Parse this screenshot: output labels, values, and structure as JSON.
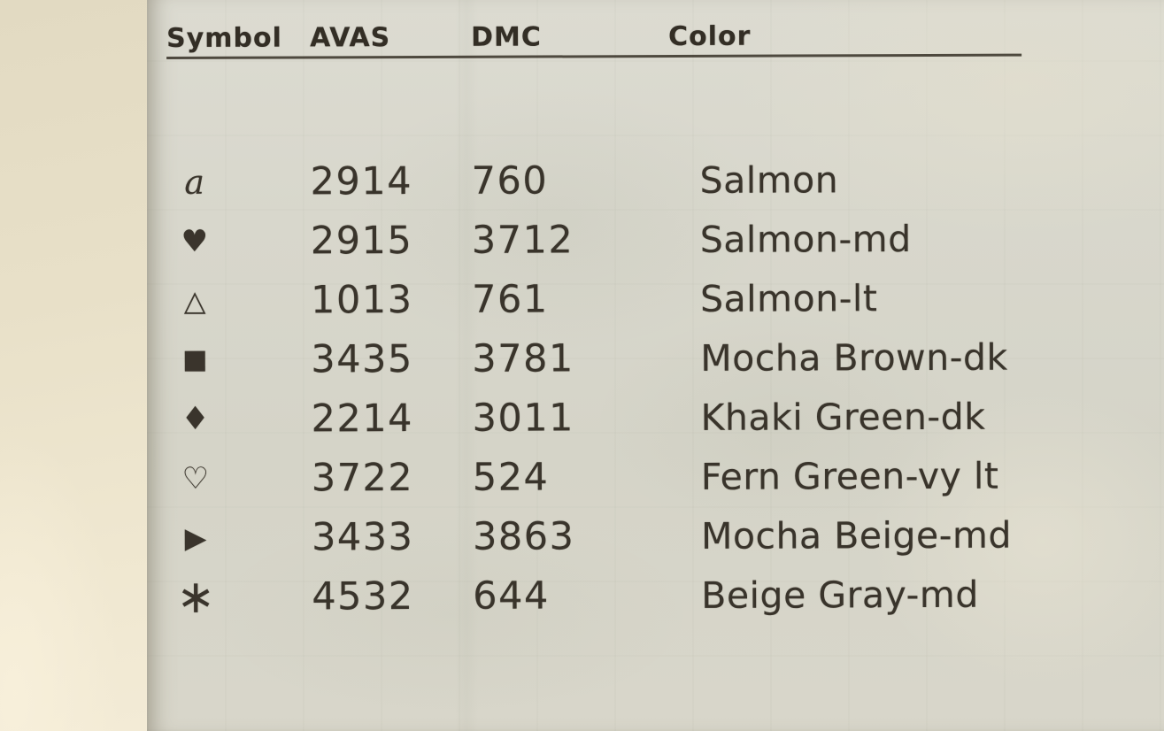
{
  "key_table": {
    "headers": {
      "symbol": "Symbol",
      "avas": "AVAS",
      "dmc": "DMC",
      "color": "Color"
    },
    "rows": [
      {
        "symbol_name": "script-a",
        "glyph": "a",
        "avas": "2914",
        "dmc": "760",
        "color": "Salmon"
      },
      {
        "symbol_name": "filled-heart",
        "glyph": "♥",
        "avas": "2915",
        "dmc": "3712",
        "color": "Salmon-md"
      },
      {
        "symbol_name": "open-triangle",
        "glyph": "△",
        "avas": "1013",
        "dmc": "761",
        "color": "Salmon-lt"
      },
      {
        "symbol_name": "filled-square",
        "glyph": "■",
        "avas": "3435",
        "dmc": "3781",
        "color": "Mocha Brown-dk"
      },
      {
        "symbol_name": "filled-diamond",
        "glyph": "♦",
        "avas": "2214",
        "dmc": "3011",
        "color": "Khaki Green-dk"
      },
      {
        "symbol_name": "open-heart",
        "glyph": "♡",
        "avas": "3722",
        "dmc": "524",
        "color": "Fern Green-vy lt"
      },
      {
        "symbol_name": "filled-right-triangle",
        "glyph": "▶",
        "avas": "3433",
        "dmc": "3863",
        "color": "Mocha Beige-md"
      },
      {
        "symbol_name": "asterisk",
        "glyph": "∗",
        "avas": "4532",
        "dmc": "644",
        "color": "Beige Gray-md"
      }
    ],
    "colors": {
      "ink": "#342e26",
      "paper": "#d8d7cc",
      "margin_paper": "#ece4cc"
    }
  }
}
